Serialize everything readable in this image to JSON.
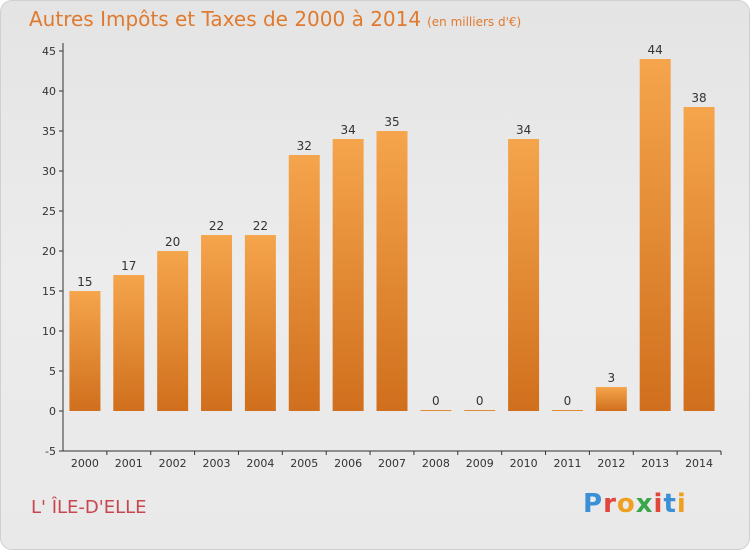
{
  "title": "Autres Impôts et Taxes de 2000 à 2014",
  "unit": "(en milliers d'€)",
  "commune": "L' ÎLE-D'ELLE",
  "logo": "Proxiti",
  "colors": {
    "bar_light": "#f5a54c",
    "bar_dark": "#d06f1d",
    "title": "#e07a2e",
    "commune": "#c8464e"
  },
  "chart_data": {
    "type": "bar",
    "title": "Autres Impôts et Taxes de 2000 à 2014",
    "categories": [
      "2000",
      "2001",
      "2002",
      "2003",
      "2004",
      "2005",
      "2006",
      "2007",
      "2008",
      "2009",
      "2010",
      "2011",
      "2012",
      "2013",
      "2014"
    ],
    "values": [
      15,
      17,
      20,
      22,
      22,
      32,
      34,
      35,
      0,
      0,
      34,
      0,
      3,
      44,
      38
    ],
    "ylim": [
      -5,
      45
    ],
    "yticks": [
      -5,
      0,
      5,
      10,
      15,
      20,
      25,
      30,
      35,
      40,
      45
    ],
    "grid": false,
    "legend": "none"
  }
}
